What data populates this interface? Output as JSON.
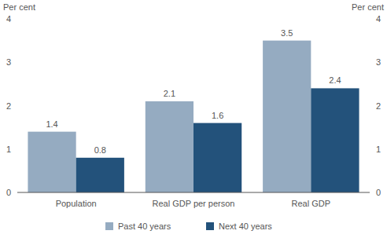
{
  "chart_data": {
    "type": "bar",
    "y_label": "Per cent",
    "y2_label": "Per cent",
    "categories": [
      "Population",
      "Real GDP per person",
      "Real GDP"
    ],
    "series": [
      {
        "name": "Past 40 years",
        "color": "#95abc1",
        "values": [
          1.4,
          2.1,
          3.5
        ]
      },
      {
        "name": "Next 40 years",
        "color": "#23527b",
        "values": [
          0.8,
          1.6,
          2.4
        ]
      }
    ],
    "ylim": [
      0,
      4
    ],
    "yticks": [
      0,
      1,
      2,
      3,
      4
    ],
    "y2lim": [
      0,
      4
    ],
    "y2ticks": [
      0,
      1,
      2,
      3,
      4
    ],
    "grid": false,
    "legend": "bottom",
    "data_labels": true
  }
}
